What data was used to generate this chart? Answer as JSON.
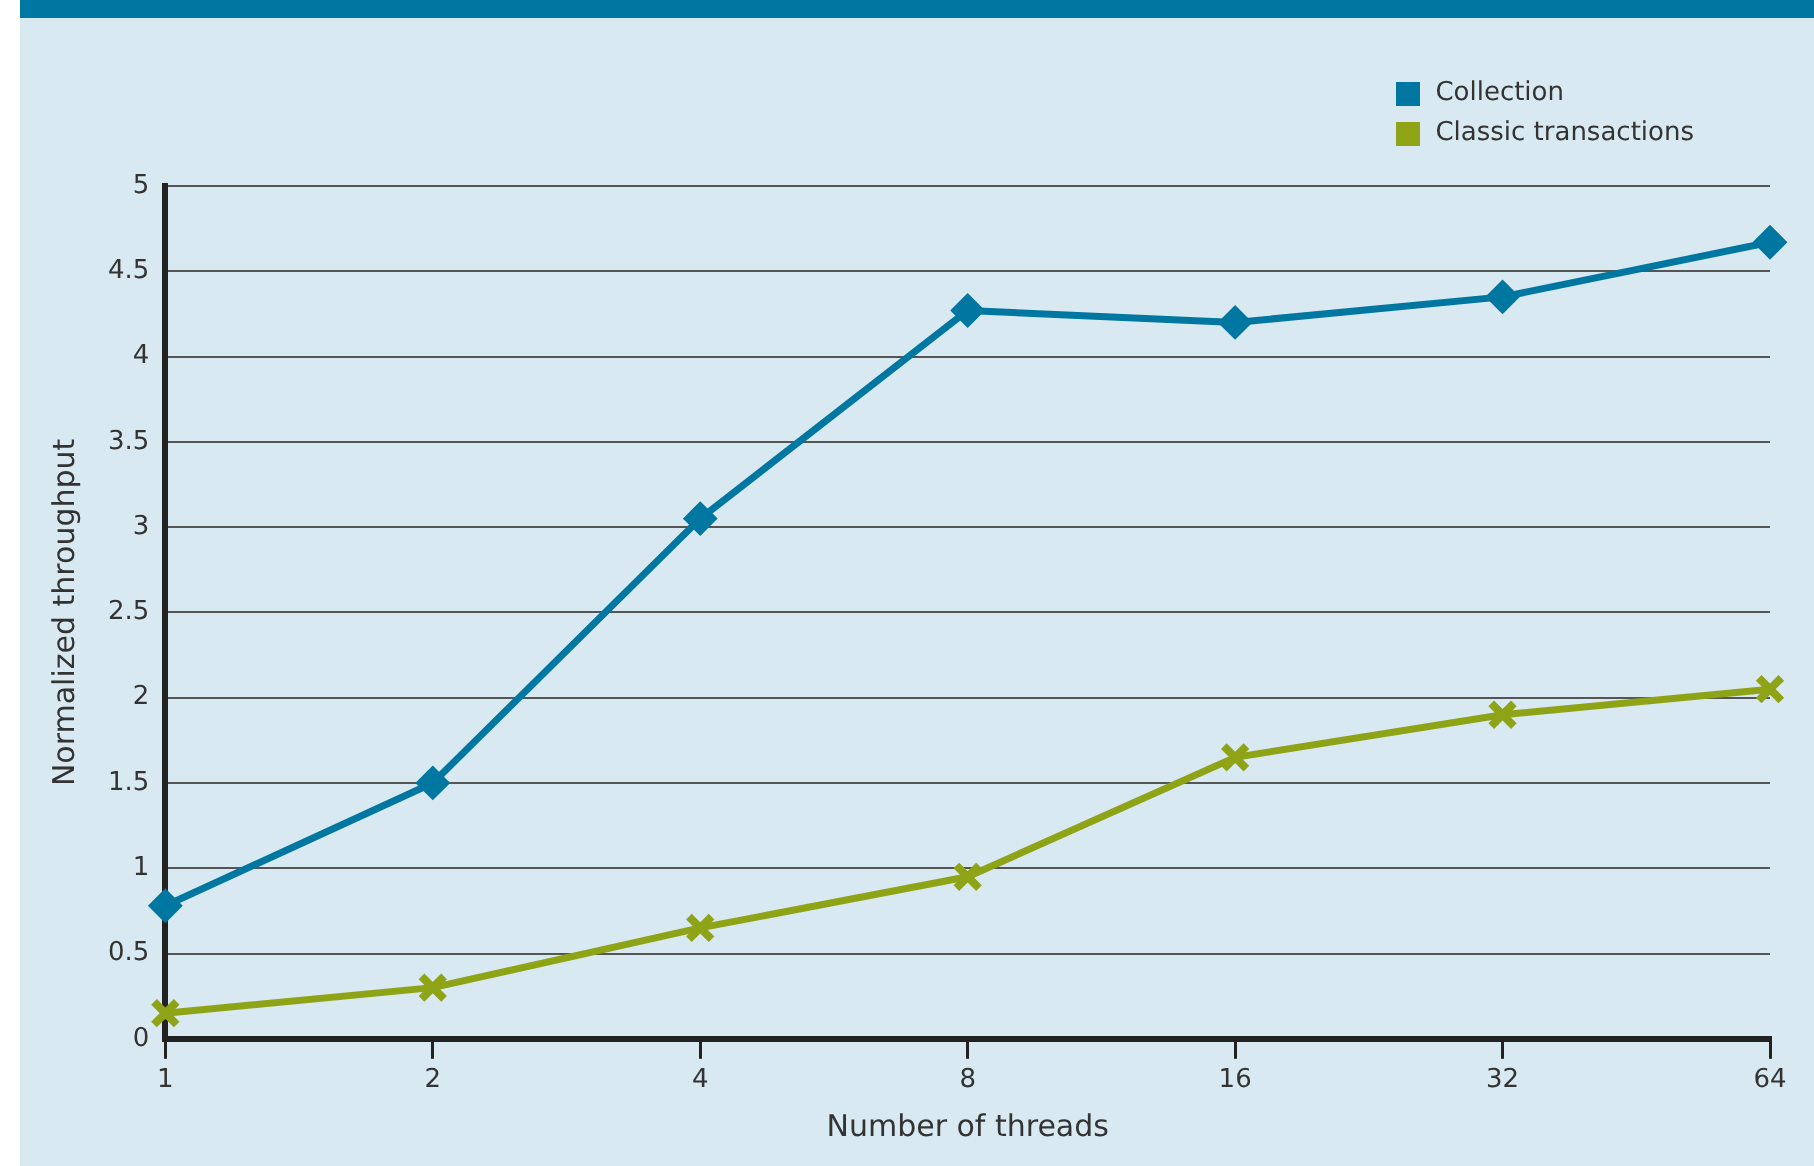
{
  "chart_data": {
    "type": "line",
    "xlabel": "Number of threads",
    "ylabel": "Normalized throughput",
    "categories": [
      "1",
      "2",
      "4",
      "8",
      "16",
      "32",
      "64"
    ],
    "series": [
      {
        "name": "Collection",
        "color": "#0077a0",
        "marker": "diamond",
        "values": [
          0.78,
          1.5,
          3.05,
          4.27,
          4.2,
          4.35,
          4.67
        ]
      },
      {
        "name": "Classic transactions",
        "color": "#8fa317",
        "marker": "cross",
        "values": [
          0.15,
          0.3,
          0.65,
          0.95,
          1.65,
          1.9,
          2.05
        ]
      }
    ],
    "ylim": [
      0,
      5
    ],
    "yticks": [
      0,
      0.5,
      1,
      1.5,
      2,
      2.5,
      3,
      3.5,
      4,
      4.5,
      5
    ],
    "grid": "y",
    "legend": "top right",
    "line_style": "solid"
  }
}
